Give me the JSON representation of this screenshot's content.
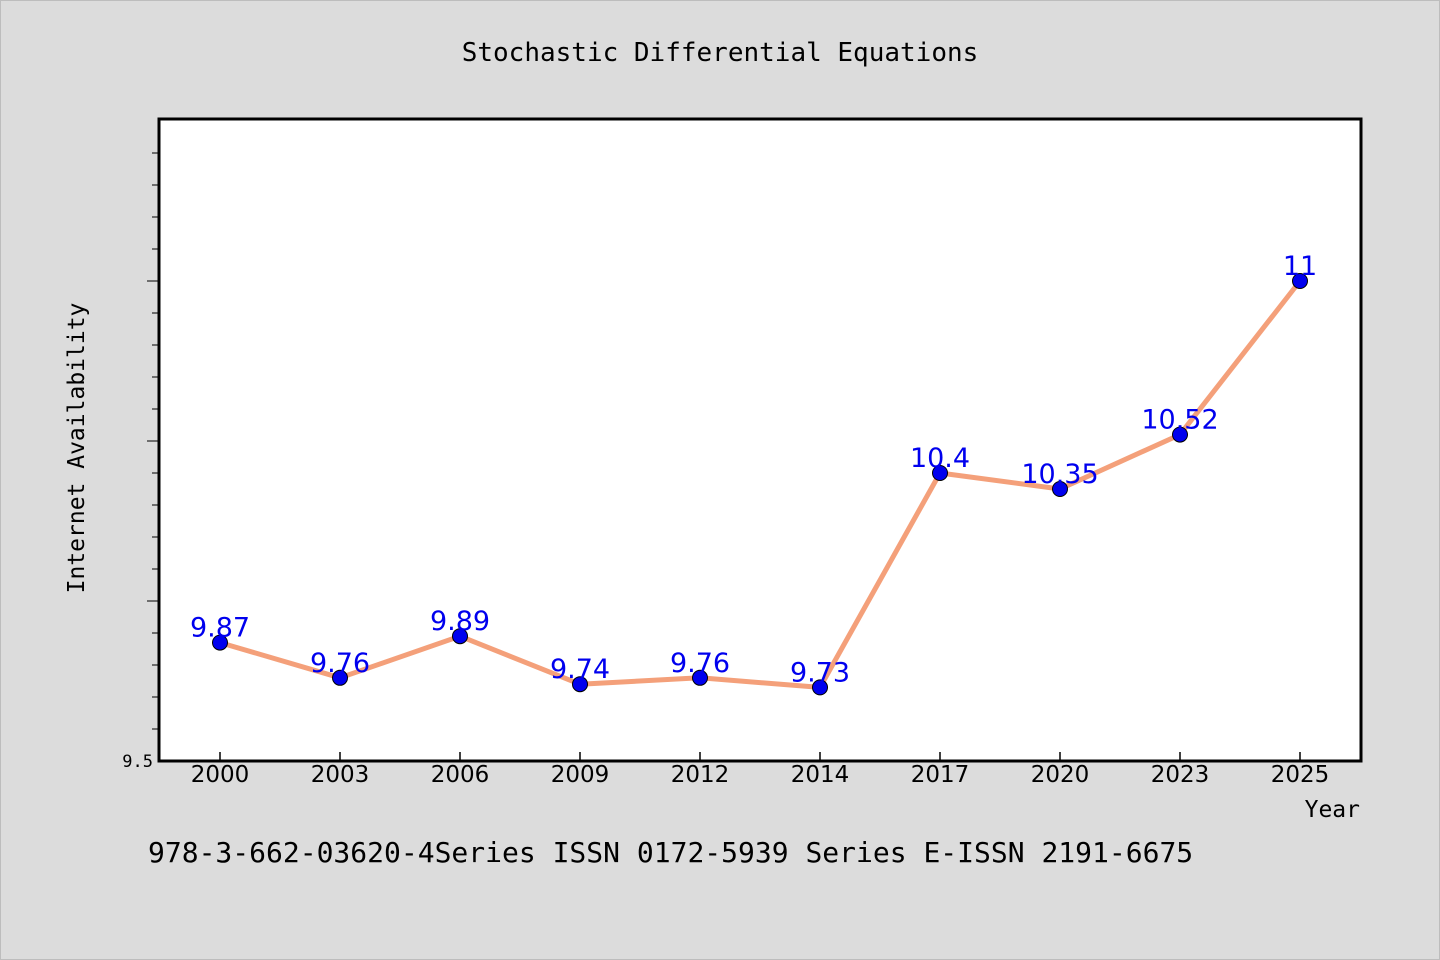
{
  "chart_data": {
    "type": "line",
    "title": "Stochastic Differential Equations",
    "xlabel": "Year",
    "ylabel": "Internet Availability",
    "categories": [
      "2000",
      "2003",
      "2006",
      "2009",
      "2012",
      "2014",
      "2017",
      "2020",
      "2023",
      "2025"
    ],
    "series": [
      {
        "values": [
          9.87,
          9.76,
          9.89,
          9.74,
          9.76,
          9.73,
          10.4,
          10.35,
          10.52,
          11
        ],
        "data_labels": [
          "9.87",
          "9.76",
          "9.89",
          "9.74",
          "9.76",
          "9.73",
          "10.4",
          "10.35",
          "10.52",
          "11"
        ]
      }
    ],
    "y_tick_label": "9.5",
    "ylim": [
      9.5,
      11.5
    ],
    "grid": false,
    "colors": {
      "line": "#f4a07a",
      "marker": "#0000ee",
      "data_label": "#0000ee",
      "axis": "#000000",
      "plot_background": "#ffffff",
      "page_background": "#dcdcdc"
    }
  },
  "footer": {
    "text": "978-3-662-03620-4Series ISSN 0172-5939 Series E-ISSN 2191-6675"
  }
}
